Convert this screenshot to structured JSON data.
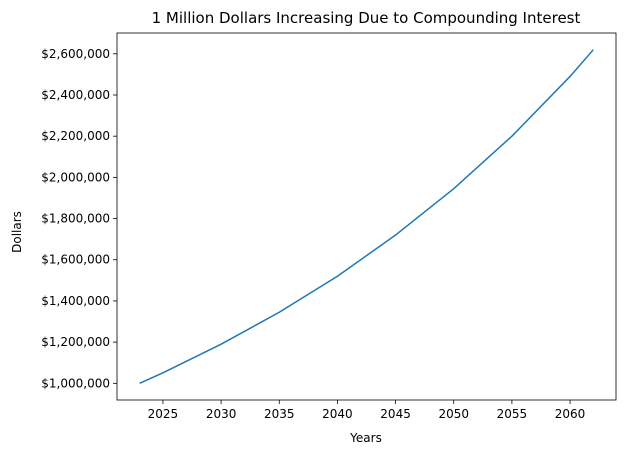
{
  "chart_data": {
    "type": "line",
    "title": "1 Million Dollars Increasing Due to Compounding Interest",
    "xlabel": "Years",
    "ylabel": "Dollars",
    "xlim": [
      2021.05,
      2063.95
    ],
    "ylim": [
      919000,
      2701000
    ],
    "grid": false,
    "x_ticks": [
      2025,
      2030,
      2035,
      2040,
      2045,
      2050,
      2055,
      2060
    ],
    "x_tick_labels": [
      "2025",
      "2030",
      "2035",
      "2040",
      "2045",
      "2050",
      "2055",
      "2060"
    ],
    "y_ticks": [
      1000000,
      1200000,
      1400000,
      1600000,
      1800000,
      2000000,
      2200000,
      2400000,
      2600000
    ],
    "y_tick_labels": [
      "$1,000,000",
      "$1,200,000",
      "$1,400,000",
      "$1,600,000",
      "$1,800,000",
      "$2,000,000",
      "$2,200,000",
      "$2,400,000",
      "$2,600,000"
    ],
    "series": [
      {
        "color": "#1f77b4",
        "x": [
          2023,
          2025,
          2030,
          2035,
          2040,
          2045,
          2050,
          2055,
          2060,
          2062
        ],
        "y": [
          1000000,
          1051000,
          1190000,
          1345000,
          1520000,
          1720000,
          1945000,
          2200000,
          2490000,
          2620000
        ]
      }
    ]
  }
}
